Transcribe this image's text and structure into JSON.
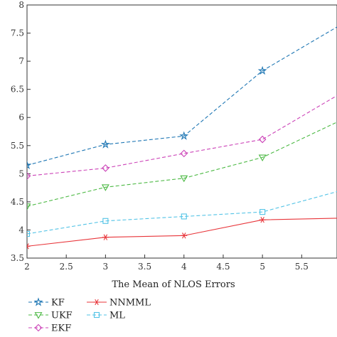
{
  "chart_data": {
    "type": "line",
    "title": "",
    "xlabel": "The Mean of NLOS Errors",
    "ylabel": "",
    "xlim": [
      2,
      5.95
    ],
    "ylim": [
      3.5,
      8
    ],
    "xticks": [
      "2",
      "2.5",
      "3",
      "3.5",
      "4",
      "4.5",
      "5",
      "5.5"
    ],
    "yticks": [
      "3.5",
      "4",
      "4.5",
      "5",
      "5.5",
      "6",
      "6.5",
      "7",
      "7.5",
      "8"
    ],
    "grid": false,
    "legend_position": "bottom-left",
    "series": [
      {
        "name": "KF",
        "color": "#1f77b4",
        "marker": "star",
        "dash": "dashed",
        "x": [
          2,
          3,
          4,
          5,
          6
        ],
        "values": [
          5.15,
          5.52,
          5.67,
          6.83,
          7.65
        ]
      },
      {
        "name": "UKF",
        "color": "#4cb944",
        "marker": "triangle-down",
        "dash": "dashed",
        "x": [
          2,
          3,
          4,
          5,
          6
        ],
        "values": [
          4.42,
          4.76,
          4.92,
          5.29,
          5.95
        ]
      },
      {
        "name": "EKF",
        "color": "#cc44b8",
        "marker": "diamond",
        "dash": "dashed",
        "x": [
          2,
          3,
          4,
          5,
          6
        ],
        "values": [
          4.96,
          5.1,
          5.36,
          5.61,
          6.43
        ]
      },
      {
        "name": "NNMML",
        "color": "#e8353a",
        "marker": "asterisk",
        "dash": "solid",
        "x": [
          2,
          3,
          4,
          5,
          6
        ],
        "values": [
          3.71,
          3.87,
          3.9,
          4.18,
          4.21
        ]
      },
      {
        "name": "ML",
        "color": "#52c3e6",
        "marker": "square",
        "dash": "dashed",
        "x": [
          2,
          3,
          4,
          5,
          6
        ],
        "values": [
          3.93,
          4.16,
          4.24,
          4.32,
          4.7
        ]
      }
    ]
  }
}
